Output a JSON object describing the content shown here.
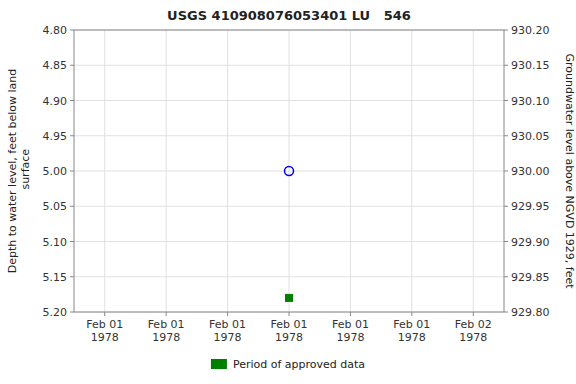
{
  "chart_data": {
    "type": "scatter",
    "title": "USGS 410908076053401 LU   546",
    "ylabel": "Depth to water level, feet below land\n surface",
    "y2label": "Groundwater level above NGVD 1929, feet",
    "categories": [
      "Feb 01\n1978",
      "Feb 01\n1978",
      "Feb 01\n1978",
      "Feb 01\n1978",
      "Feb 01\n1978",
      "Feb 01\n1978",
      "Feb 02\n1978"
    ],
    "ylim": [
      5.2,
      4.8
    ],
    "yticks": [
      {
        "value": 4.8,
        "label": "4.80"
      },
      4.85,
      {
        "value": 4.9,
        "label": "4.90"
      },
      4.95,
      {
        "value": 5.0,
        "label": "5.00"
      },
      5.05,
      {
        "value": 5.1,
        "label": "5.10"
      },
      5.15,
      {
        "value": 5.2,
        "label": "5.20"
      }
    ],
    "y2lim": [
      929.8,
      930.2
    ],
    "y2ticks": [
      {
        "value": 930.2,
        "label": "930.20"
      },
      930.15,
      {
        "value": 930.1,
        "label": "930.10"
      },
      930.05,
      {
        "value": 930.0,
        "label": "930.00"
      },
      929.95,
      {
        "value": 929.9,
        "label": "929.90"
      },
      929.85,
      {
        "value": 929.8,
        "label": "929.80"
      }
    ],
    "grid": true,
    "legend": "bottom",
    "series": [
      {
        "color": "blue",
        "marker": "circle",
        "values": [
          null,
          null,
          null,
          5.0,
          null,
          null,
          null
        ]
      },
      {
        "name": "Period of approved data",
        "color": "green",
        "marker": "square",
        "values": [
          null,
          null,
          null,
          5.18,
          null,
          null,
          null
        ]
      }
    ]
  }
}
